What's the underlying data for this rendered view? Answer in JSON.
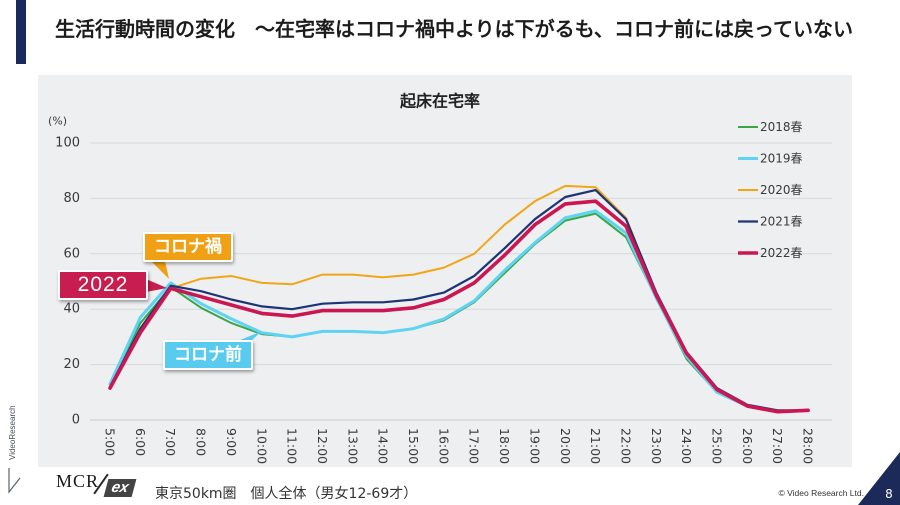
{
  "slide": {
    "title": "生活行動時間の変化　～在宅率はコロナ禍中よりは下がるも、コロナ前には戻っていない",
    "footnote": "東京50km圏　個人全体（男女12-69才）",
    "copyright": "© Video Research Ltd.",
    "page_number": "8",
    "logo_main": "MCR",
    "logo_sub": "ex",
    "side_brand": "VideoResearch"
  },
  "colors": {
    "title_bar": "#1b2a5c",
    "chart_background": "#eeeff1",
    "page_badge": "#1c2a5a"
  },
  "chart_data": {
    "type": "line",
    "title": "起床在宅率",
    "ylabel": "(%)",
    "xlabel": "",
    "categories": [
      "5:00",
      "6:00",
      "7:00",
      "8:00",
      "9:00",
      "10:00",
      "11:00",
      "12:00",
      "13:00",
      "14:00",
      "15:00",
      "16:00",
      "17:00",
      "18:00",
      "19:00",
      "20:00",
      "21:00",
      "22:00",
      "23:00",
      "24:00",
      "25:00",
      "26:00",
      "27:00",
      "28:00"
    ],
    "ylim": [
      0,
      100
    ],
    "yticks": [
      0,
      20,
      40,
      60,
      80,
      100
    ],
    "grid": true,
    "legend_position": "right",
    "series": [
      {
        "name": "2018春",
        "color": "#3aa648",
        "values": [
          12,
          35,
          48,
          40.5,
          35,
          31,
          30,
          32,
          32,
          31.5,
          33,
          36,
          42.5,
          53,
          63.5,
          72,
          74.5,
          66,
          44,
          22,
          10,
          5,
          3,
          3.5
        ]
      },
      {
        "name": "2019春",
        "color": "#5fd3f3",
        "values": [
          13,
          37,
          49.5,
          42,
          36.5,
          31.5,
          30,
          32,
          32,
          31.5,
          33,
          36.5,
          43,
          54,
          64,
          73,
          75.5,
          67.5,
          44,
          23,
          10,
          5,
          3,
          3.5
        ]
      },
      {
        "name": "2020春",
        "color": "#f2a516",
        "values": [
          12,
          32,
          47.5,
          51,
          52,
          49.5,
          49,
          52.5,
          52.5,
          51.5,
          52.5,
          55,
          60,
          70.5,
          79,
          84.5,
          84,
          73,
          45.5,
          24,
          11,
          5,
          3,
          3.5
        ]
      },
      {
        "name": "2021春",
        "color": "#1d3576",
        "values": [
          12,
          33,
          48.5,
          46.5,
          43.5,
          41,
          40,
          42,
          42.5,
          42.5,
          43.5,
          46,
          52,
          62,
          72.5,
          80.5,
          83,
          72.5,
          46,
          24.5,
          11.5,
          5.5,
          3.5,
          3.5
        ]
      },
      {
        "name": "2022春",
        "color": "#cc1651",
        "values": [
          11.5,
          31.5,
          47.5,
          44.5,
          41.5,
          38.5,
          37.5,
          39.5,
          39.5,
          39.5,
          40.5,
          43.5,
          49.5,
          59.5,
          70.5,
          78,
          79,
          70,
          45,
          24,
          11,
          5,
          3,
          3.5
        ]
      }
    ],
    "annotations": [
      {
        "text": "コロナ禍",
        "color": "#f0a015"
      },
      {
        "text": "2022",
        "color": "#c81d4f"
      },
      {
        "text": "コロナ前",
        "color": "#58cbee"
      }
    ]
  }
}
